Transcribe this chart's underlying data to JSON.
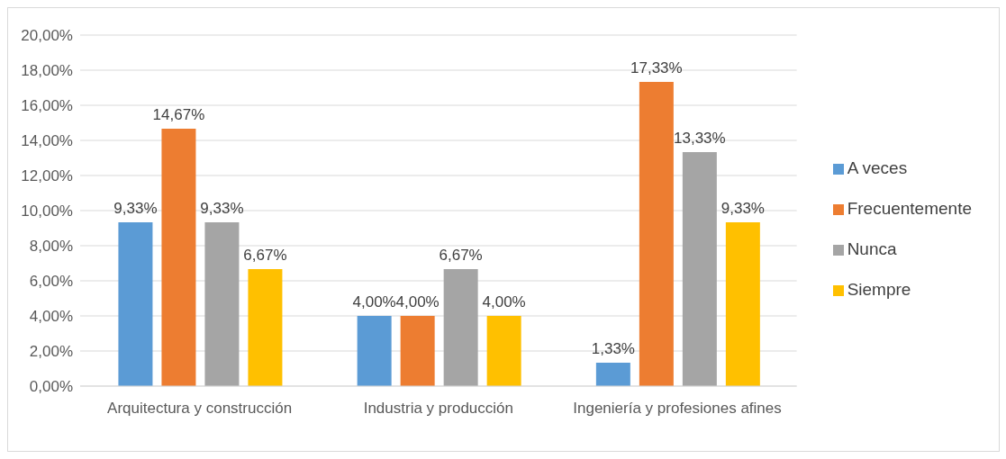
{
  "chart_data": {
    "type": "bar",
    "categories": [
      "Arquitectura y construcción",
      "Industria y producción",
      "Ingeniería y profesiones afines"
    ],
    "series": [
      {
        "name": "A veces",
        "color": "#5b9bd5",
        "values": [
          9.33,
          4.0,
          1.33
        ],
        "value_labels": [
          "9,33%",
          "4,00%",
          "1,33%"
        ]
      },
      {
        "name": "Frecuentemente",
        "color": "#ed7d31",
        "values": [
          14.67,
          4.0,
          17.33
        ],
        "value_labels": [
          "14,67%",
          "4,00%",
          "17,33%"
        ]
      },
      {
        "name": "Nunca",
        "color": "#a5a5a5",
        "values": [
          9.33,
          6.67,
          13.33
        ],
        "value_labels": [
          "9,33%",
          "6,67%",
          "13,33%"
        ]
      },
      {
        "name": "Siempre",
        "color": "#ffc000",
        "values": [
          6.67,
          4.0,
          9.33
        ],
        "value_labels": [
          "6,67%",
          "4,00%",
          "9,33%"
        ]
      }
    ],
    "ylim": [
      0,
      20
    ],
    "yticks": [
      {
        "value": 0,
        "label": "0,00%"
      },
      {
        "value": 2,
        "label": "2,00%"
      },
      {
        "value": 4,
        "label": "4,00%"
      },
      {
        "value": 6,
        "label": "6,00%"
      },
      {
        "value": 8,
        "label": "8,00%"
      },
      {
        "value": 10,
        "label": "10,00%"
      },
      {
        "value": 12,
        "label": "12,00%"
      },
      {
        "value": 14,
        "label": "14,00%"
      },
      {
        "value": 16,
        "label": "16,00%"
      },
      {
        "value": 18,
        "label": "18,00%"
      },
      {
        "value": 20,
        "label": "20,00%"
      }
    ],
    "grid": "y",
    "legend": "right"
  }
}
